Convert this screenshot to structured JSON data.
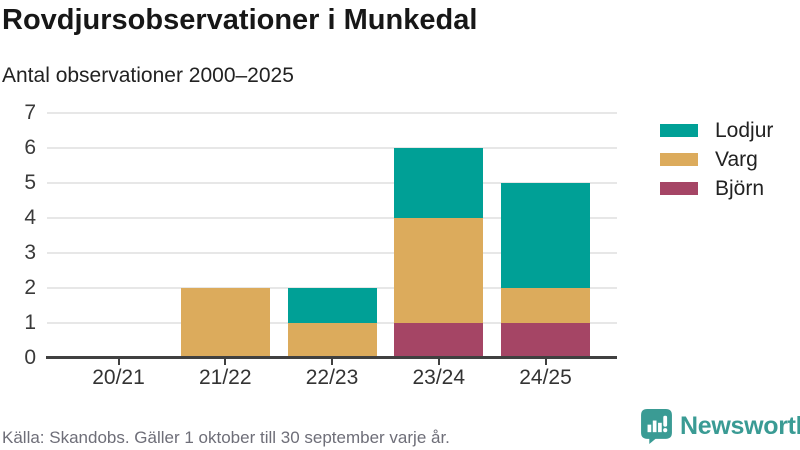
{
  "header": {
    "title": "Rovdjursobservationer i Munkedal",
    "subtitle": "Antal observationer 2000–2025"
  },
  "chart_data": {
    "type": "bar",
    "stacked": true,
    "title": "Rovdjursobservationer i Munkedal",
    "subtitle": "Antal observationer 2000–2025",
    "categories": [
      "20/21",
      "21/22",
      "22/23",
      "23/24",
      "24/25"
    ],
    "series": [
      {
        "name": "Björn",
        "color": "#a54565",
        "values": [
          0,
          0,
          0,
          1,
          1
        ]
      },
      {
        "name": "Varg",
        "color": "#dcab5c",
        "values": [
          0,
          2,
          1,
          3,
          1
        ]
      },
      {
        "name": "Lodjur",
        "color": "#00a096",
        "values": [
          0,
          0,
          1,
          2,
          3
        ]
      }
    ],
    "totals": [
      0,
      2,
      2,
      6,
      5
    ],
    "xlabel": "",
    "ylabel": "",
    "ylim": [
      0,
      7
    ],
    "yticks": [
      0,
      1,
      2,
      3,
      4,
      5,
      6,
      7
    ],
    "grid": true,
    "legend_position": "right",
    "legend_order": [
      "Lodjur",
      "Varg",
      "Björn"
    ]
  },
  "footer": {
    "source": "Källa: Skandobs. Gäller 1 oktober till 30 september varje år.",
    "brand": "Newsworthy",
    "brand_color": "#3a9b94"
  }
}
